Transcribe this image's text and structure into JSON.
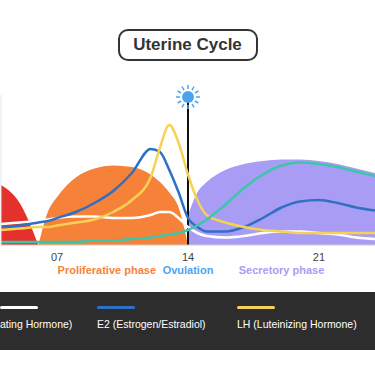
{
  "chart_data": {
    "type": "line",
    "title": "Uterine Cycle",
    "x": [
      4,
      5,
      6,
      6.5,
      7,
      8,
      9,
      10,
      11,
      12,
      12.5,
      13,
      13.5,
      14,
      14.5,
      15,
      16,
      17,
      18,
      19,
      20,
      21,
      22,
      23,
      24
    ],
    "xlim": [
      4,
      24
    ],
    "xticks": [
      {
        "value": 7,
        "label": "07"
      },
      14,
      21
    ],
    "ylim": [
      0,
      100
    ],
    "tick_labels": "x",
    "legend": "bottom",
    "series": [
      {
        "name": "ating Hormone)",
        "type": "line",
        "color": "#ffffff",
        "values": [
          14,
          15,
          16,
          17,
          18,
          19,
          19,
          18,
          18,
          20,
          22,
          22,
          18,
          12,
          8,
          6,
          5,
          6,
          8,
          9,
          9,
          8,
          7,
          5,
          4
        ]
      },
      {
        "name": "E2 (Estrogen/Estradiol)",
        "type": "line",
        "color": "#2f6fc4",
        "values": [
          12,
          13,
          15,
          16,
          18,
          22,
          28,
          36,
          48,
          64,
          62,
          50,
          35,
          18,
          12,
          9,
          9,
          12,
          18,
          25,
          29,
          30,
          28,
          25,
          23
        ]
      },
      {
        "name": "LH (Luteinizing Hormone)",
        "type": "line",
        "color": "#f7d154",
        "values": [
          10,
          11,
          12,
          12,
          13,
          15,
          17,
          22,
          30,
          45,
          65,
          80,
          68,
          47,
          30,
          20,
          15,
          12,
          10,
          9,
          8,
          8,
          8,
          8,
          8
        ]
      },
      {
        "type": "line",
        "color": "#3cc6a8",
        "values": [
          2,
          2,
          2,
          2,
          2,
          2,
          3,
          3,
          4,
          5,
          6,
          7,
          8,
          10,
          13,
          17,
          27,
          38,
          47,
          53,
          55,
          54,
          52,
          49,
          46
        ]
      }
    ],
    "phases": [
      {
        "label": null,
        "color": "#e5312b",
        "values": [
          40,
          28,
          0,
          null,
          null,
          null,
          null,
          null,
          null,
          null,
          null,
          null,
          null,
          null,
          null,
          null,
          null,
          null,
          null,
          null,
          null,
          null,
          null,
          null,
          null
        ]
      },
      {
        "label": "Proliferative phase",
        "color": "#f6823a",
        "values": [
          null,
          null,
          0,
          22,
          32,
          45,
          51,
          53,
          52,
          47,
          42,
          35,
          25,
          0,
          null,
          null,
          null,
          null,
          null,
          null,
          null,
          null,
          null,
          null,
          null
        ]
      },
      {
        "label": "Secretory phase",
        "color": "#a99cf5",
        "values": [
          null,
          null,
          null,
          null,
          null,
          null,
          null,
          null,
          null,
          null,
          null,
          null,
          null,
          20,
          35,
          42,
          50,
          54,
          56,
          57,
          57,
          56,
          54,
          51,
          48
        ]
      }
    ],
    "ovulation": {
      "label": "Ovulation",
      "x": 14
    }
  }
}
